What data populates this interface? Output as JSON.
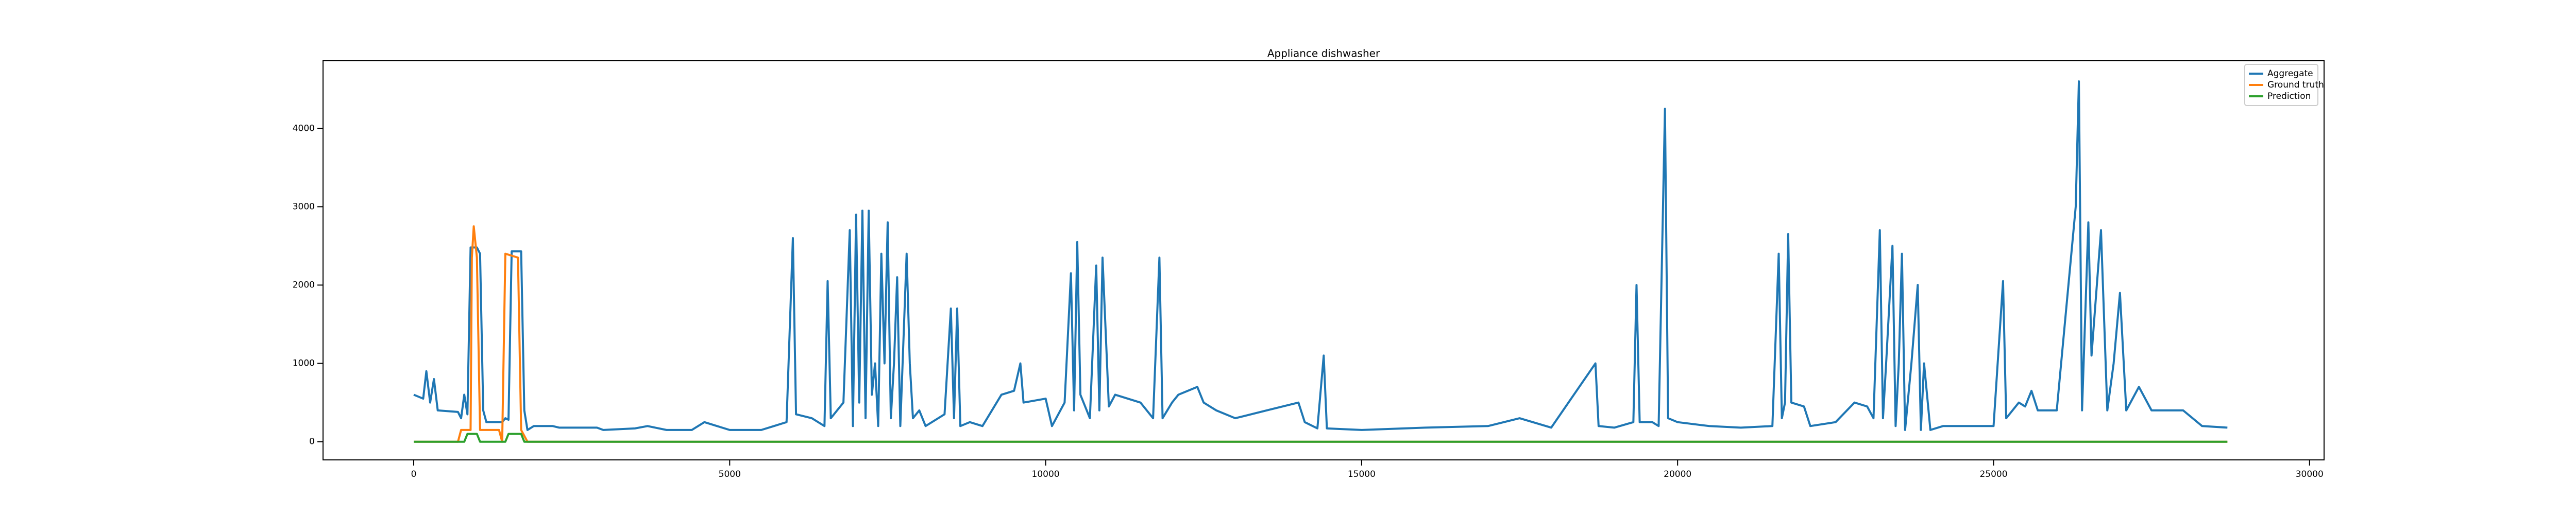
{
  "chart_data": {
    "type": "line",
    "title": "Appliance dishwasher",
    "xlim": [
      -1435,
      30230
    ],
    "ylim": [
      -232,
      4863
    ],
    "xticks": [
      0,
      5000,
      10000,
      15000,
      20000,
      25000,
      30000
    ],
    "yticks": [
      0,
      1000,
      2000,
      3000,
      4000
    ],
    "legend": "upper right",
    "series": [
      {
        "name": "Aggregate",
        "color": "#1f77b4",
        "x": [
          0,
          150,
          200,
          260,
          320,
          380,
          700,
          750,
          800,
          850,
          900,
          1000,
          1050,
          1100,
          1150,
          1400,
          1450,
          1500,
          1550,
          1700,
          1750,
          1800,
          1900,
          2200,
          2300,
          2900,
          3000,
          3500,
          3700,
          4000,
          4400,
          4600,
          4800,
          5000,
          5500,
          5700,
          5900,
          6000,
          6050,
          6300,
          6500,
          6550,
          6600,
          6800,
          6900,
          6950,
          7000,
          7050,
          7100,
          7150,
          7200,
          7250,
          7300,
          7350,
          7400,
          7450,
          7500,
          7550,
          7600,
          7650,
          7700,
          7800,
          7850,
          7900,
          8000,
          8100,
          8300,
          8400,
          8500,
          8550,
          8600,
          8650,
          8800,
          9000,
          9300,
          9500,
          9600,
          9650,
          10000,
          10100,
          10300,
          10400,
          10450,
          10500,
          10550,
          10700,
          10800,
          10850,
          10900,
          11000,
          11100,
          11500,
          11700,
          11800,
          11850,
          12000,
          12100,
          12400,
          12500,
          12700,
          13000,
          13500,
          14000,
          14100,
          14300,
          14400,
          14450,
          15000,
          16000,
          17000,
          17500,
          18000,
          18700,
          18750,
          19000,
          19300,
          19350,
          19400,
          19600,
          19700,
          19800,
          19850,
          20000,
          20500,
          21000,
          21500,
          21600,
          21650,
          21700,
          21750,
          21800,
          22000,
          22100,
          22500,
          22800,
          23000,
          23100,
          23200,
          23250,
          23300,
          23400,
          23450,
          23500,
          23550,
          23600,
          23700,
          23800,
          23850,
          23900,
          24000,
          24200,
          25000,
          25150,
          25200,
          25400,
          25500,
          25600,
          25700,
          26000,
          26300,
          26350,
          26400,
          26500,
          26550,
          26700,
          26800,
          26900,
          27000,
          27100,
          27300,
          27500,
          28000,
          28300,
          28700
        ],
        "values": [
          600,
          550,
          900,
          500,
          800,
          400,
          380,
          300,
          600,
          350,
          2480,
          2480,
          2400,
          400,
          250,
          250,
          300,
          280,
          2430,
          2430,
          400,
          150,
          200,
          200,
          180,
          180,
          150,
          170,
          200,
          150,
          150,
          250,
          200,
          150,
          150,
          200,
          250,
          2600,
          350,
          300,
          200,
          2050,
          300,
          500,
          2700,
          200,
          2900,
          500,
          2950,
          300,
          2950,
          600,
          1000,
          200,
          2400,
          1000,
          2800,
          300,
          1000,
          2100,
          200,
          2400,
          1000,
          300,
          400,
          200,
          300,
          350,
          1700,
          300,
          1700,
          200,
          250,
          200,
          600,
          650,
          1000,
          500,
          550,
          200,
          500,
          2150,
          400,
          2550,
          600,
          300,
          2250,
          400,
          2350,
          450,
          600,
          500,
          300,
          2350,
          300,
          500,
          600,
          700,
          500,
          400,
          300,
          400,
          500,
          250,
          170,
          1100,
          170,
          150,
          180,
          200,
          300,
          180,
          1000,
          200,
          180,
          250,
          2000,
          250,
          250,
          200,
          4250,
          300,
          250,
          200,
          180,
          200,
          2400,
          300,
          500,
          2650,
          500,
          450,
          200,
          250,
          500,
          450,
          300,
          2700,
          300,
          1000,
          2500,
          200,
          1000,
          2400,
          150,
          1000,
          2000,
          150,
          1000,
          150,
          200,
          200,
          2050,
          300,
          500,
          450,
          650,
          400,
          400,
          3000,
          4600,
          400,
          2800,
          1100,
          2700,
          400,
          1000,
          1900,
          400,
          700,
          400,
          400,
          200,
          180
        ]
      },
      {
        "name": "Ground truth",
        "color": "#ff7f0e",
        "x": [
          0,
          700,
          750,
          900,
          920,
          950,
          1000,
          1050,
          1350,
          1400,
          1450,
          1650,
          1700,
          1800,
          28700
        ],
        "values": [
          0,
          0,
          150,
          150,
          2350,
          2750,
          2350,
          150,
          150,
          0,
          2400,
          2350,
          150,
          0,
          0
        ]
      },
      {
        "name": "Prediction",
        "color": "#2ca02c",
        "x": [
          0,
          800,
          850,
          1000,
          1050,
          1450,
          1500,
          1700,
          1750,
          28700
        ],
        "values": [
          0,
          0,
          100,
          100,
          0,
          0,
          100,
          100,
          0,
          0
        ]
      }
    ]
  }
}
